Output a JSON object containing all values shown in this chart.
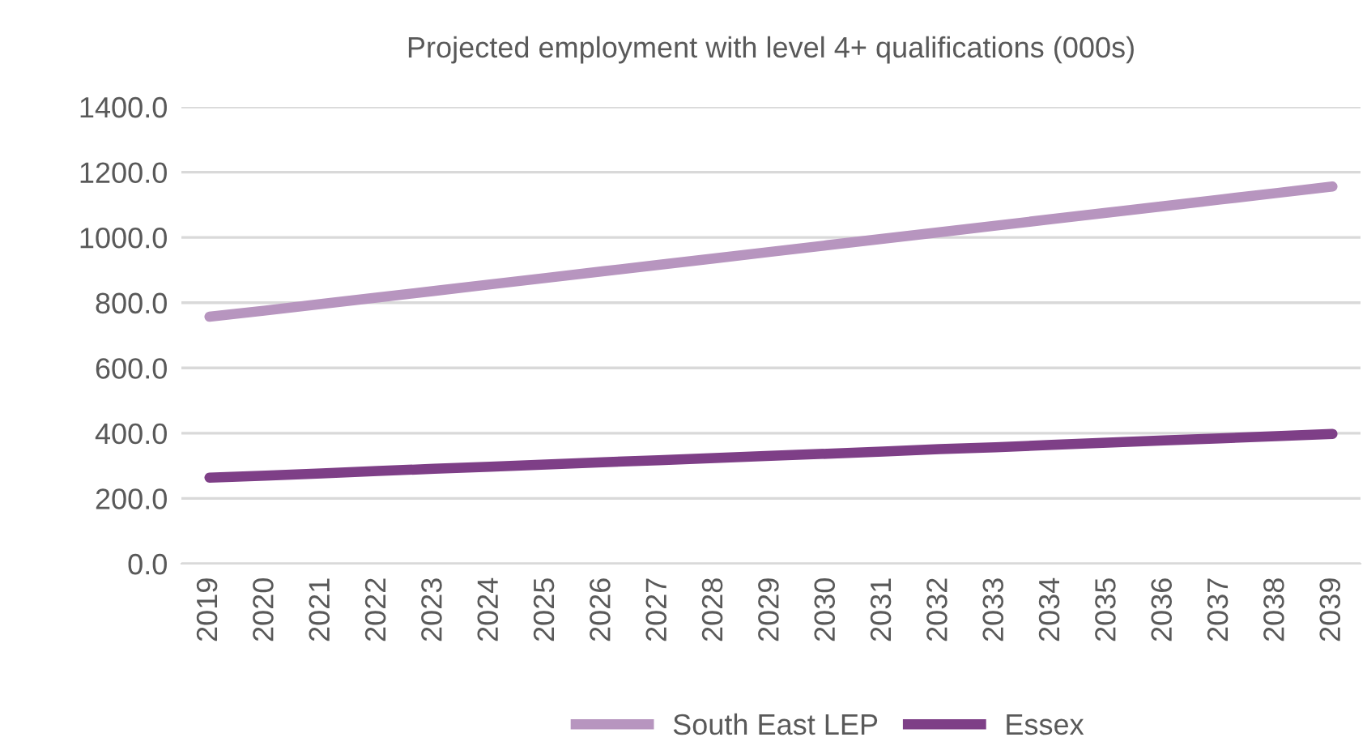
{
  "chart_data": {
    "type": "line",
    "title": "Projected employment with level 4+ qualifications (000s)",
    "categories": [
      "2019",
      "2020",
      "2021",
      "2022",
      "2023",
      "2024",
      "2025",
      "2026",
      "2027",
      "2028",
      "2029",
      "2030",
      "2031",
      "2032",
      "2033",
      "2034",
      "2035",
      "2036",
      "2037",
      "2038",
      "2039"
    ],
    "series": [
      {
        "name": "South East LEP",
        "color": "#b795bf",
        "values": [
          757,
          776,
          796,
          816,
          836,
          856,
          876,
          896,
          916,
          936,
          956,
          976,
          996,
          1016,
          1036,
          1056,
          1076,
          1096,
          1116,
          1136,
          1156
        ]
      },
      {
        "name": "Essex",
        "color": "#7e3f87",
        "values": [
          264,
          270,
          277,
          284,
          291,
          297,
          304,
          311,
          317,
          324,
          331,
          337,
          344,
          351,
          357,
          364,
          371,
          378,
          384,
          391,
          398
        ]
      }
    ],
    "ylim": [
      0,
      1400
    ],
    "yticks": [
      {
        "value": 0,
        "label": "0.0"
      },
      {
        "value": 200,
        "label": "200.0"
      },
      {
        "value": 400,
        "label": "400.0"
      },
      {
        "value": 600,
        "label": "600.0"
      },
      {
        "value": 800,
        "label": "800.0"
      },
      {
        "value": 1000,
        "label": "1000.0"
      },
      {
        "value": 1200,
        "label": "1200.0"
      },
      {
        "value": 1400,
        "label": "1400.0"
      }
    ],
    "grid": "y",
    "legend": "bottom",
    "marker": "none",
    "line_style": "solid"
  }
}
